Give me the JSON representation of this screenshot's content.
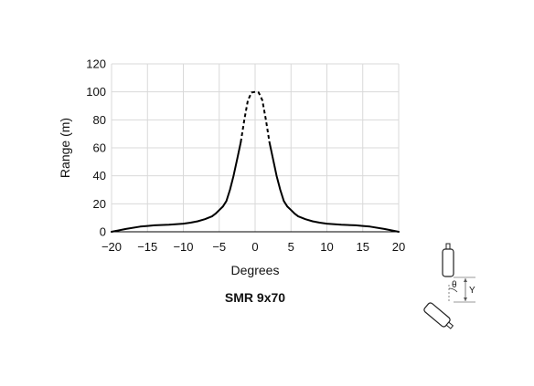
{
  "chart_data": {
    "type": "line",
    "title": "SMR 9x70",
    "xlabel": "Degrees",
    "ylabel": "Range (m)",
    "xlim": [
      -20,
      20
    ],
    "ylim": [
      0,
      120
    ],
    "xticks": [
      -20,
      -15,
      -10,
      -5,
      0,
      5,
      10,
      15,
      20
    ],
    "yticks": [
      0,
      20,
      40,
      60,
      80,
      100,
      120
    ],
    "xtick_labels": [
      "−20",
      "−15",
      "−10",
      "−5",
      "0",
      "5",
      "10",
      "15",
      "20"
    ],
    "ytick_labels": [
      "0",
      "20",
      "40",
      "60",
      "80",
      "100",
      "120"
    ],
    "grid": true,
    "legend": "none",
    "series_color": "#000000",
    "series": [
      {
        "style": "solid",
        "x": [
          -20,
          -18,
          -16,
          -15,
          -14,
          -12,
          -10,
          -9,
          -8,
          -7,
          -6,
          -5.5,
          -5,
          -4.5,
          -4,
          -3.5,
          -3,
          -2.5,
          -2
        ],
        "y": [
          0,
          2,
          3.7,
          4.2,
          4.6,
          5,
          5.8,
          6.5,
          7.5,
          9,
          11,
          13,
          15.5,
          18,
          22,
          30,
          40,
          52,
          64
        ]
      },
      {
        "style": "dashed",
        "x": [
          -2,
          -1.5,
          -1,
          -0.5,
          0,
          0.5,
          1,
          1.5,
          2
        ],
        "y": [
          64,
          80,
          94,
          99.5,
          100,
          99.5,
          94,
          80,
          64
        ]
      },
      {
        "style": "solid",
        "x": [
          2,
          2.5,
          3,
          3.5,
          4,
          4.5,
          5,
          5.5,
          6,
          7,
          8,
          9,
          10,
          12,
          14,
          15,
          16,
          18,
          20
        ],
        "y": [
          64,
          52,
          40,
          30,
          22,
          18,
          15.5,
          13,
          11,
          9,
          7.5,
          6.5,
          5.8,
          5,
          4.6,
          4.2,
          3.7,
          2,
          0
        ]
      }
    ]
  },
  "diagram": {
    "angle_label": "θ",
    "offset_label": "Y"
  }
}
